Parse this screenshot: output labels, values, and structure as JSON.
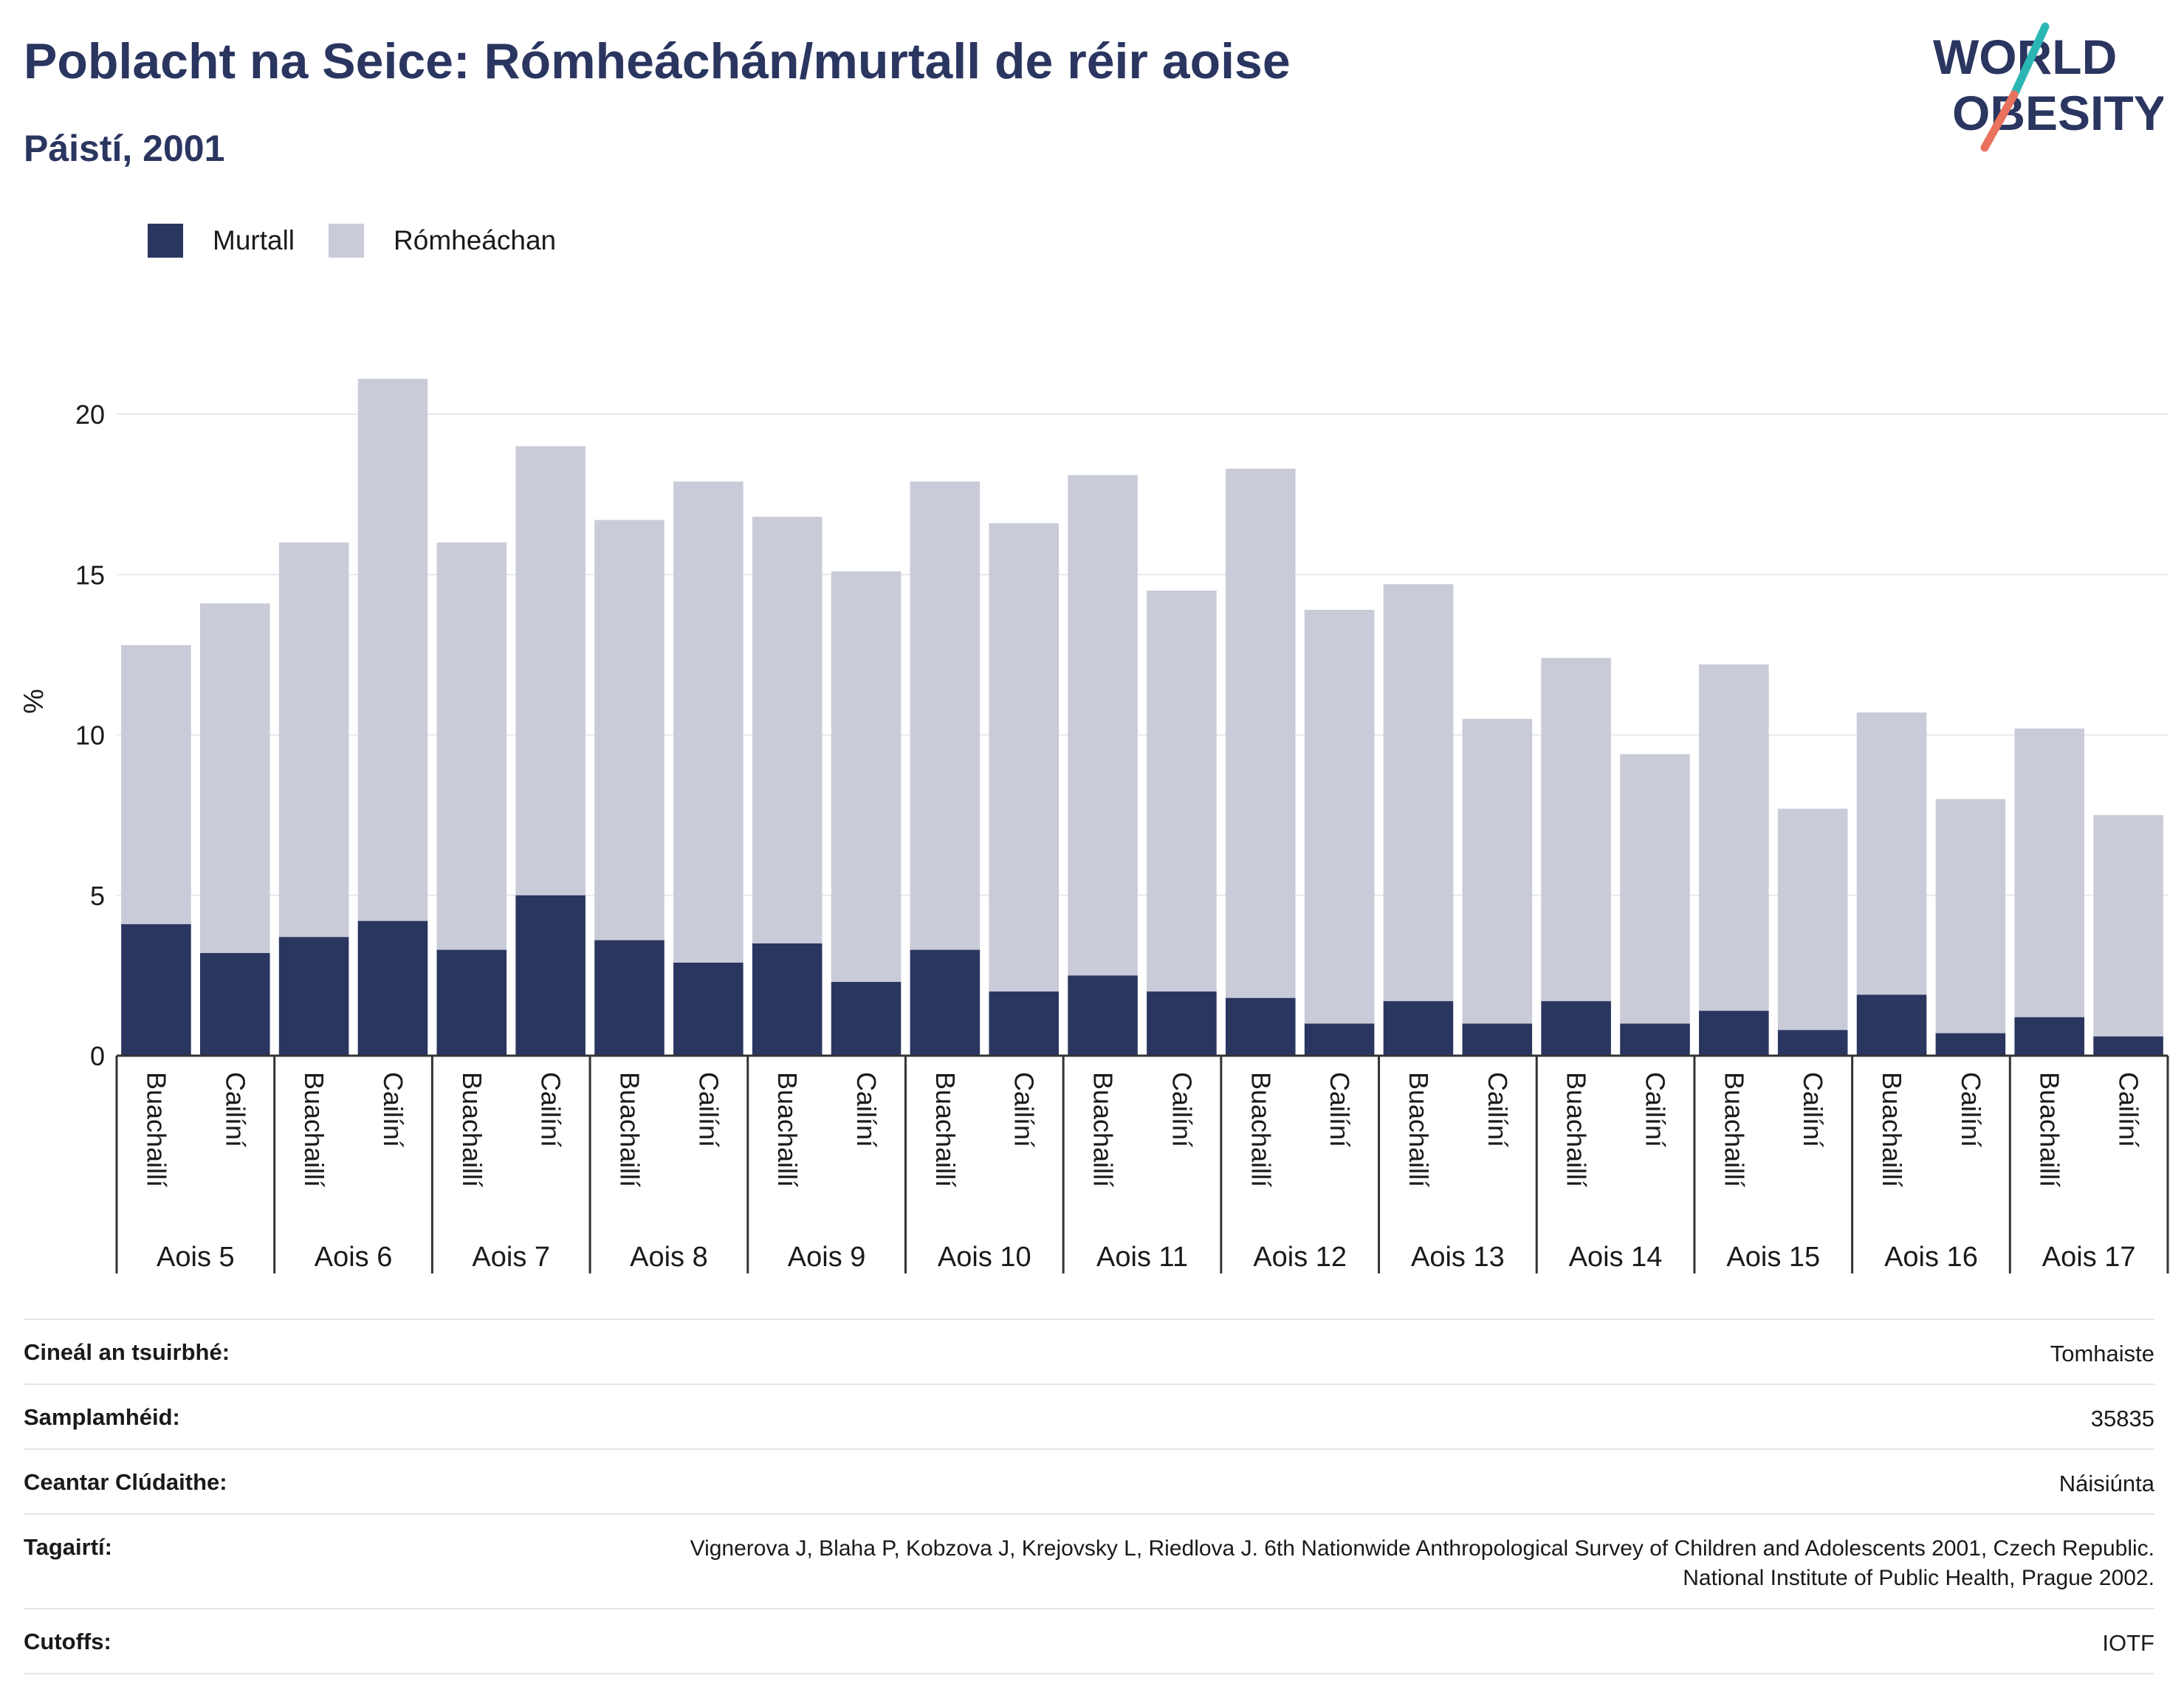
{
  "header": {
    "title": "Poblacht na Seice: Rómheáchán/murtall de réir aoise",
    "subtitle": "Páistí, 2001",
    "logo_line1": "WORLD",
    "logo_line2": "OBESITY"
  },
  "colors": {
    "obese": "#2a3560",
    "overweight": "#cacbd8",
    "title": "#2a3560",
    "logo_teal": "#2bb6b4",
    "logo_coral": "#e9725e"
  },
  "legend": [
    {
      "label": "Murtall",
      "color": "#2a3560"
    },
    {
      "label": "Rómheáchan",
      "color": "#cacbd8"
    }
  ],
  "chart_data": {
    "type": "bar",
    "stacked": true,
    "ylabel": "%",
    "ylim": [
      0,
      22
    ],
    "yticks": [
      0,
      5,
      10,
      15,
      20
    ],
    "grid": true,
    "legend_position": "top-left",
    "groups": [
      "Aois 5",
      "Aois 6",
      "Aois 7",
      "Aois 8",
      "Aois 9",
      "Aois 10",
      "Aois 11",
      "Aois 12",
      "Aois 13",
      "Aois 14",
      "Aois 15",
      "Aois 16",
      "Aois 17"
    ],
    "subcategories": [
      "Buachaillí",
      "Cailíní"
    ],
    "series": [
      {
        "name": "Murtall",
        "values": [
          4.1,
          3.2,
          3.7,
          4.2,
          3.3,
          5.0,
          3.6,
          2.9,
          3.5,
          2.3,
          3.3,
          2.0,
          2.5,
          2.0,
          1.8,
          1.0,
          1.7,
          1.0,
          1.7,
          1.0,
          1.4,
          0.8,
          1.9,
          0.7,
          1.2,
          0.6
        ]
      },
      {
        "name": "Rómheáchan",
        "values": [
          8.7,
          10.9,
          12.3,
          16.9,
          12.7,
          14.0,
          13.1,
          15.0,
          13.3,
          12.8,
          14.6,
          14.6,
          15.6,
          12.5,
          16.5,
          12.9,
          13.0,
          9.5,
          10.7,
          8.4,
          10.8,
          6.9,
          8.8,
          7.3,
          9.0,
          6.9
        ]
      }
    ],
    "totals": [
      12.8,
      14.1,
      16.0,
      21.1,
      16.0,
      19.0,
      16.7,
      17.9,
      16.8,
      15.1,
      17.9,
      16.6,
      18.1,
      14.5,
      18.3,
      13.9,
      14.7,
      10.5,
      12.4,
      9.4,
      12.2,
      7.7,
      10.7,
      8.0,
      10.2,
      7.5
    ]
  },
  "meta": [
    {
      "label": "Cineál an tsuirbhé:",
      "value": "Tomhaiste"
    },
    {
      "label": "Samplamhéid:",
      "value": "35835"
    },
    {
      "label": "Ceantar Clúdaithe:",
      "value": "Náisiúnta"
    },
    {
      "label": "Tagairtí:",
      "value": "Vignerova J, Blaha P, Kobzova J, Krejovsky L, Riedlova J. 6th Nationwide Anthropological Survey of Children and Adolescents 2001, Czech Republic. National Institute of Public Health, Prague 2002."
    },
    {
      "label": "Cutoffs:",
      "value": "IOTF"
    }
  ]
}
